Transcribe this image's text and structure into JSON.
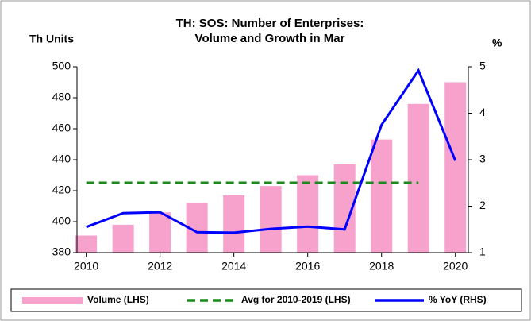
{
  "chart_data": {
    "type": "bar-line",
    "title": "TH: SOS: Number of Enterprises:",
    "subtitle": "Volume and Growth in Mar",
    "y_label": "Th Units",
    "y2_label": "%",
    "x": [
      2010,
      2011,
      2012,
      2013,
      2014,
      2015,
      2016,
      2017,
      2018,
      2019,
      2020
    ],
    "xlim": [
      2009.75,
      2020.35
    ],
    "xticks": [
      2010,
      2012,
      2014,
      2016,
      2018,
      2020
    ],
    "ylim": [
      380,
      500
    ],
    "yticks": [
      380,
      400,
      420,
      440,
      460,
      480,
      500
    ],
    "y2lim": [
      1,
      5
    ],
    "y2ticks": [
      1,
      2,
      3,
      4,
      5
    ],
    "legend": "bottom",
    "series": [
      {
        "name": "Volume (LHS)",
        "type": "bar",
        "color": "#f7a1cd",
        "values": [
          391,
          398,
          406,
          412,
          417,
          423,
          430,
          437,
          453,
          476,
          490
        ]
      },
      {
        "name": "Avg for 2010-2019 (LHS)",
        "type": "dashed-line",
        "color": "#1a8a1a",
        "values": [
          425,
          425,
          425,
          425,
          425,
          425,
          425,
          425,
          425,
          425,
          null
        ]
      },
      {
        "name": "% YoY (RHS)",
        "type": "line",
        "axis": "y2",
        "color": "#0000ff",
        "values": [
          1.55,
          1.85,
          1.87,
          1.44,
          1.43,
          1.51,
          1.56,
          1.5,
          3.75,
          4.92,
          2.98
        ]
      }
    ]
  }
}
